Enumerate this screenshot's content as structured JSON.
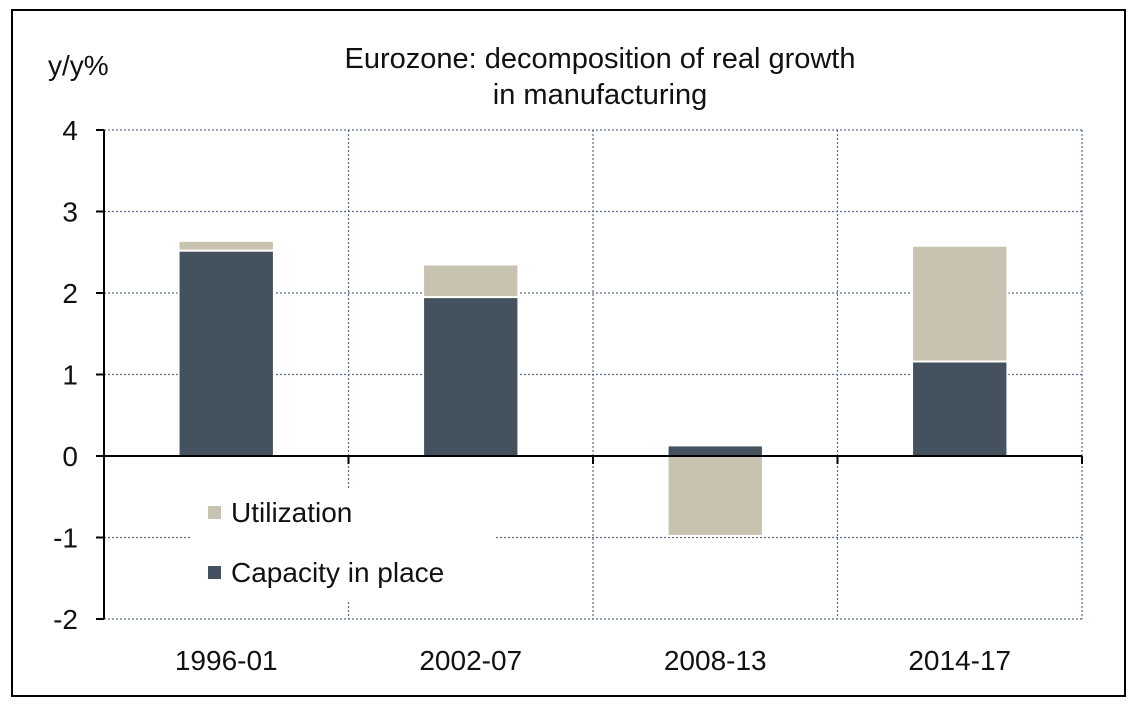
{
  "chart_data": {
    "type": "bar",
    "stacked": true,
    "title": [
      "Eurozone: decomposition of real growth",
      "in manufacturing"
    ],
    "ylabel": "y/y%",
    "xlabel": "",
    "categories": [
      "1996-01",
      "2002-07",
      "2008-13",
      "2014-17"
    ],
    "ylim": [
      -2,
      4
    ],
    "yticks": [
      -2,
      -1,
      0,
      1,
      2,
      3,
      4
    ],
    "grid": true,
    "legend_position": "lower-left",
    "series": [
      {
        "name": "Capacity in place",
        "color": "#44525f",
        "values": [
          2.52,
          1.95,
          0.13,
          1.16
        ]
      },
      {
        "name": "Utilization",
        "color": "#c8c2b1",
        "values": [
          0.12,
          0.4,
          -0.98,
          1.42
        ]
      }
    ],
    "legend_order": [
      "Utilization",
      "Capacity in place"
    ]
  }
}
